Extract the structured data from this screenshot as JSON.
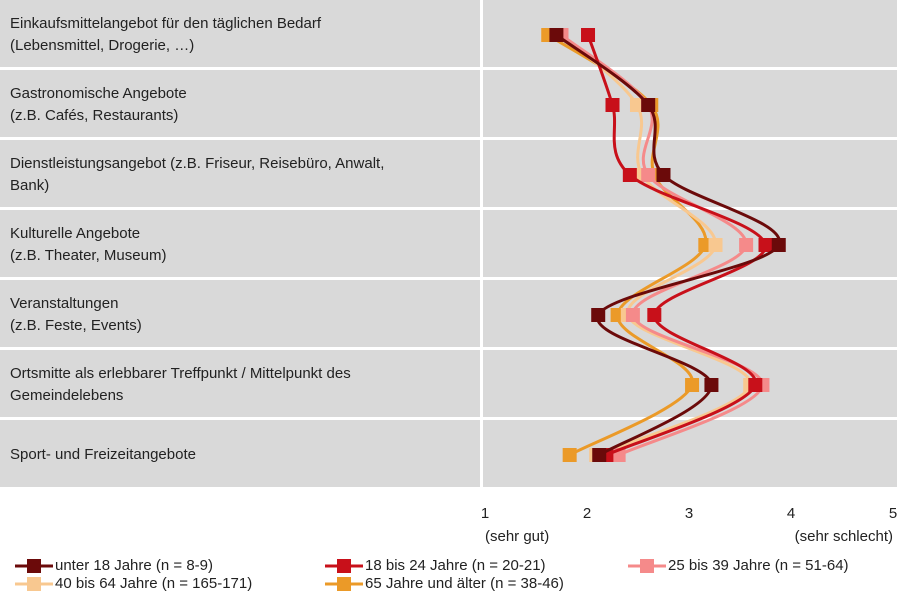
{
  "chart_data": {
    "type": "line",
    "categories": [
      [
        "Einkaufsmittelangebot für den täglichen Bedarf",
        "(Lebensmittel, Drogerie, …)"
      ],
      [
        "Gastronomische Angebote",
        "(z.B. Cafés, Restaurants)"
      ],
      [
        "Dienstleistungsangebot  (z.B. Friseur, Reisebüro, Anwalt,",
        "Bank)"
      ],
      [
        "Kulturelle Angebote",
        "(z.B. Theater, Museum)"
      ],
      [
        "Veranstaltungen",
        "(z.B. Feste, Events)"
      ],
      [
        "Ortsmitte als erlebbarer Treffpunkt / Mittelpunkt des",
        "Gemeindelebens"
      ],
      [
        "Sport- und Freizeitangebote"
      ]
    ],
    "series": [
      {
        "name": "unter 18 Jahre (n = 8-9)",
        "color": "#6b0a0a",
        "values": [
          1.7,
          2.6,
          2.75,
          3.88,
          2.11,
          3.22,
          2.12
        ]
      },
      {
        "name": "18 bis 24 Jahre (n = 20-21)",
        "color": "#c8101a",
        "values": [
          2.01,
          2.25,
          2.42,
          3.75,
          2.66,
          3.65,
          2.19
        ]
      },
      {
        "name": "25 bis 39 Jahre (n = 51-64)",
        "color": "#f58a8a",
        "values": [
          1.75,
          2.6,
          2.6,
          3.56,
          2.45,
          3.72,
          2.31
        ]
      },
      {
        "name": "40 bis 64 Jahre (n = 165-171)",
        "color": "#f8c890",
        "values": [
          1.75,
          2.49,
          2.54,
          3.26,
          2.4,
          3.6,
          2.09
        ]
      },
      {
        "name": "65 Jahre und älter (n = 38-46)",
        "color": "#eb9a28",
        "values": [
          1.62,
          2.63,
          2.66,
          3.16,
          2.3,
          3.03,
          1.83
        ]
      }
    ],
    "xlim": [
      1,
      5
    ],
    "xticks": [
      1,
      2,
      3,
      4,
      5
    ],
    "annotations": [
      "(sehr gut)",
      "(sehr schlecht)"
    ]
  }
}
